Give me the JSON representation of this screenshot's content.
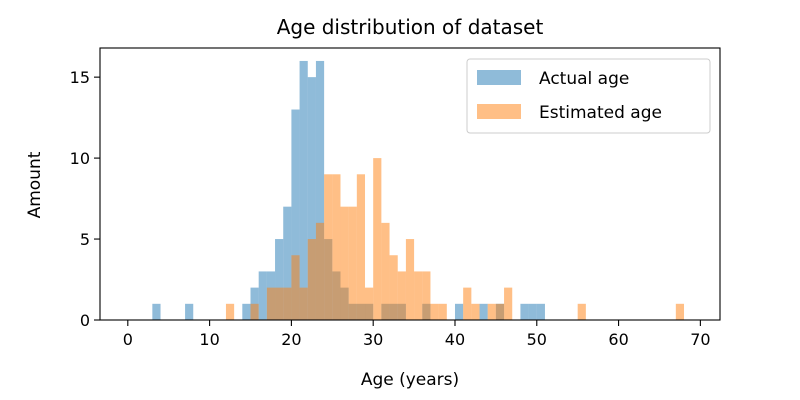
{
  "chart_data": {
    "type": "bar",
    "title": "Age distribution of dataset",
    "xlabel": "Age (years)",
    "ylabel": "Amount",
    "xlim": [
      -3.4,
      72.4
    ],
    "ylim": [
      0,
      16.8
    ],
    "xticks": [
      0,
      10,
      20,
      30,
      40,
      50,
      60,
      70
    ],
    "yticks": [
      0,
      5,
      10,
      15
    ],
    "bin_width": 1,
    "legend": {
      "position": "top-right"
    },
    "series": [
      {
        "name": "Actual age",
        "color": "#1f77b4",
        "alpha": 0.5,
        "bins": [
          {
            "x": 3,
            "y": 1
          },
          {
            "x": 7,
            "y": 1
          },
          {
            "x": 14,
            "y": 1
          },
          {
            "x": 15,
            "y": 2
          },
          {
            "x": 16,
            "y": 3
          },
          {
            "x": 17,
            "y": 3
          },
          {
            "x": 18,
            "y": 5
          },
          {
            "x": 19,
            "y": 7
          },
          {
            "x": 20,
            "y": 13
          },
          {
            "x": 21,
            "y": 16
          },
          {
            "x": 22,
            "y": 15
          },
          {
            "x": 23,
            "y": 16
          },
          {
            "x": 24,
            "y": 5
          },
          {
            "x": 25,
            "y": 3
          },
          {
            "x": 26,
            "y": 2
          },
          {
            "x": 27,
            "y": 1
          },
          {
            "x": 28,
            "y": 1
          },
          {
            "x": 29,
            "y": 1
          },
          {
            "x": 31,
            "y": 1
          },
          {
            "x": 32,
            "y": 1
          },
          {
            "x": 33,
            "y": 1
          },
          {
            "x": 36,
            "y": 1
          },
          {
            "x": 40,
            "y": 1
          },
          {
            "x": 43,
            "y": 1
          },
          {
            "x": 45,
            "y": 1
          },
          {
            "x": 48,
            "y": 1
          },
          {
            "x": 49,
            "y": 1
          },
          {
            "x": 50,
            "y": 1
          }
        ]
      },
      {
        "name": "Estimated age",
        "color": "#ff7f0e",
        "alpha": 0.5,
        "bins": [
          {
            "x": 12,
            "y": 1
          },
          {
            "x": 15,
            "y": 1
          },
          {
            "x": 17,
            "y": 2
          },
          {
            "x": 18,
            "y": 2
          },
          {
            "x": 19,
            "y": 2
          },
          {
            "x": 20,
            "y": 4
          },
          {
            "x": 21,
            "y": 2
          },
          {
            "x": 22,
            "y": 5
          },
          {
            "x": 23,
            "y": 6
          },
          {
            "x": 24,
            "y": 9
          },
          {
            "x": 25,
            "y": 9
          },
          {
            "x": 26,
            "y": 7
          },
          {
            "x": 27,
            "y": 7
          },
          {
            "x": 28,
            "y": 9
          },
          {
            "x": 29,
            "y": 2
          },
          {
            "x": 30,
            "y": 10
          },
          {
            "x": 31,
            "y": 6
          },
          {
            "x": 32,
            "y": 4
          },
          {
            "x": 33,
            "y": 3
          },
          {
            "x": 34,
            "y": 5
          },
          {
            "x": 35,
            "y": 3
          },
          {
            "x": 36,
            "y": 3
          },
          {
            "x": 37,
            "y": 1
          },
          {
            "x": 38,
            "y": 1
          },
          {
            "x": 41,
            "y": 2
          },
          {
            "x": 42,
            "y": 1
          },
          {
            "x": 44,
            "y": 1
          },
          {
            "x": 45,
            "y": 1
          },
          {
            "x": 46,
            "y": 2
          },
          {
            "x": 55,
            "y": 1
          },
          {
            "x": 67,
            "y": 1
          }
        ]
      }
    ]
  }
}
